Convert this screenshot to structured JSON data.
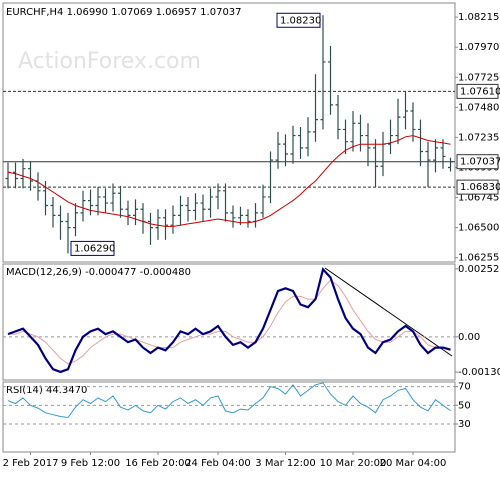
{
  "chart_data": [
    {
      "type": "ohlc",
      "title": "EURCHF,H4  1.06990 1.07069 1.06957 1.07037",
      "watermark": "ActionForex.com",
      "color": "#2f4f4f",
      "ma_color": "#cc0000",
      "categories": [
        null,
        null,
        null,
        "2 Feb 2017",
        null,
        null,
        null,
        null,
        null,
        null,
        null,
        "9 Feb 12:00",
        null,
        null,
        null,
        null,
        null,
        null,
        null,
        null,
        "16 Feb 20:00",
        null,
        null,
        null,
        null,
        null,
        null,
        null,
        "24 Feb 04:00",
        null,
        null,
        null,
        null,
        null,
        null,
        null,
        null,
        "3 Mar 12:00",
        null,
        null,
        null,
        null,
        null,
        null,
        null,
        null,
        "10 Mar 20:00",
        null,
        null,
        null,
        null,
        null,
        null,
        null,
        "20 Mar 04:00",
        null,
        null,
        null,
        null,
        null
      ],
      "open": [
        1.069,
        1.0695,
        1.069,
        1.0698,
        1.0688,
        1.068,
        1.0668,
        1.066,
        1.0655,
        1.065,
        1.0662,
        1.0672,
        1.0668,
        1.0675,
        1.067,
        1.0678,
        1.0665,
        1.066,
        1.0665,
        1.0655,
        1.065,
        1.0658,
        1.0652,
        1.066,
        1.0668,
        1.0664,
        1.067,
        1.0665,
        1.0675,
        1.068,
        1.0662,
        1.0658,
        1.066,
        1.0655,
        1.0662,
        1.0675,
        1.0705,
        1.0718,
        1.071,
        1.0725,
        1.0715,
        1.0728,
        1.0738,
        1.0785,
        1.075,
        1.073,
        1.072,
        1.0735,
        1.0725,
        1.0715,
        1.07,
        1.0718,
        1.0725,
        1.074,
        1.0745,
        1.073,
        1.0712,
        1.0705,
        1.0715,
        1.0699
      ],
      "high": [
        1.0703,
        1.0703,
        1.0706,
        1.0704,
        1.0695,
        1.0688,
        1.0675,
        1.0668,
        1.0662,
        1.067,
        1.068,
        1.0681,
        1.0683,
        1.0682,
        1.0686,
        1.0684,
        1.0672,
        1.0673,
        1.067,
        1.0662,
        1.0665,
        1.0665,
        1.0668,
        1.0676,
        1.0675,
        1.0678,
        1.0677,
        1.0682,
        1.0686,
        1.0686,
        1.0668,
        1.0667,
        1.0665,
        1.067,
        1.0685,
        1.0712,
        1.0728,
        1.0726,
        1.0733,
        1.0732,
        1.074,
        1.0775,
        1.0823,
        1.0798,
        1.0758,
        1.0738,
        1.0745,
        1.0742,
        1.0735,
        1.0722,
        1.0728,
        1.0738,
        1.0755,
        1.0761,
        1.0752,
        1.0738,
        1.072,
        1.0722,
        1.0722,
        1.07069
      ],
      "low": [
        1.0682,
        1.0682,
        1.0682,
        1.068,
        1.0672,
        1.066,
        1.065,
        1.064,
        1.0629,
        1.0643,
        1.0655,
        1.066,
        1.066,
        1.0662,
        1.0663,
        1.0658,
        1.0652,
        1.0652,
        1.0645,
        1.0636,
        1.064,
        1.064,
        1.0645,
        1.0652,
        1.0655,
        1.0656,
        1.0655,
        1.0658,
        1.0665,
        1.0655,
        1.065,
        1.0652,
        1.065,
        1.065,
        1.0658,
        1.067,
        1.0698,
        1.07,
        1.0702,
        1.0706,
        1.0708,
        1.072,
        1.073,
        1.0742,
        1.0722,
        1.071,
        1.0712,
        1.0712,
        1.07,
        1.0683,
        1.0692,
        1.071,
        1.0718,
        1.073,
        1.072,
        1.07,
        1.0683,
        1.0695,
        1.0698,
        1.06957
      ],
      "close": [
        1.0695,
        1.069,
        1.0698,
        1.0688,
        1.068,
        1.0668,
        1.066,
        1.0655,
        1.065,
        1.0662,
        1.0672,
        1.0668,
        1.0675,
        1.067,
        1.0678,
        1.0665,
        1.066,
        1.0665,
        1.0655,
        1.065,
        1.0658,
        1.0652,
        1.066,
        1.0668,
        1.0664,
        1.067,
        1.0665,
        1.0675,
        1.068,
        1.0662,
        1.0658,
        1.066,
        1.0655,
        1.0662,
        1.0675,
        1.0705,
        1.0718,
        1.071,
        1.0725,
        1.0715,
        1.0728,
        1.0738,
        1.0785,
        1.075,
        1.073,
        1.072,
        1.0735,
        1.0725,
        1.0715,
        1.07,
        1.0718,
        1.0725,
        1.074,
        1.0745,
        1.073,
        1.0712,
        1.0705,
        1.0715,
        1.0708,
        1.07037
      ],
      "ma": [
        1.0695,
        1.0694,
        1.0692,
        1.069,
        1.0687,
        1.0683,
        1.0679,
        1.0675,
        1.0671,
        1.0668,
        1.0666,
        1.0664,
        1.0663,
        1.0662,
        1.0661,
        1.066,
        1.0659,
        1.0657,
        1.0655,
        1.0653,
        1.0652,
        1.0651,
        1.0651,
        1.0652,
        1.0653,
        1.0654,
        1.0655,
        1.0656,
        1.0657,
        1.0656,
        1.0655,
        1.0654,
        1.0654,
        1.0655,
        1.0657,
        1.066,
        1.0664,
        1.0668,
        1.0672,
        1.0677,
        1.0683,
        1.0688,
        1.0695,
        1.0702,
        1.0708,
        1.0713,
        1.0716,
        1.0718,
        1.0718,
        1.0718,
        1.0718,
        1.0719,
        1.0721,
        1.0724,
        1.0725,
        1.0723,
        1.0721,
        1.072,
        1.0719,
        1.0718
      ],
      "ylim": [
        1.0622,
        1.0833
      ],
      "yticks": [
        {
          "value": 1.08215,
          "label": "1.08215"
        },
        {
          "value": 1.0797,
          "label": "1.07970"
        },
        {
          "value": 1.07725,
          "label": "1.07725"
        },
        {
          "value": 1.0748,
          "label": "1.07480"
        },
        {
          "value": 1.07235,
          "label": "1.07235"
        },
        {
          "value": 1.0699,
          "label": "1.06990"
        },
        {
          "value": 1.06745,
          "label": "1.06745"
        },
        {
          "value": 1.065,
          "label": "1.06500"
        },
        {
          "value": 1.06255,
          "label": "1.06255"
        }
      ],
      "levels": [
        {
          "value": 1.0761,
          "label": "1.07610",
          "style": "dashed"
        },
        {
          "value": 1.07037,
          "label": "1.07037",
          "style": "solid"
        },
        {
          "value": 1.0683,
          "label": "1.06830",
          "style": "dashed"
        }
      ],
      "high_label": {
        "value": 1.0823,
        "label": "1.08230"
      },
      "low_label": {
        "value": 1.0629,
        "label": "1.06290"
      }
    },
    {
      "type": "macd",
      "title": "MACD(12,26,9) -0.000477 -0.000480",
      "series": [
        {
          "color": "#000080",
          "values": [
            0.0001,
            0.0002,
            0.0003,
            0,
            -0.0003,
            -0.0008,
            -0.0012,
            -0.0013,
            -0.0012,
            -0.0005,
            0,
            0.0002,
            0.0003,
            0.0001,
            0.0002,
            0,
            -0.0002,
            -0.0001,
            -0.0004,
            -0.0006,
            -0.0004,
            -0.0005,
            -0.0002,
            0.0002,
            0.0001,
            0.0003,
            0.0001,
            0.0002,
            0.0004,
            0,
            -0.0003,
            -0.0002,
            -0.0004,
            -0.0002,
            0.0003,
            0.001,
            0.0017,
            0.0018,
            0.0017,
            0.0012,
            0.0011,
            0.0014,
            0.0025,
            0.0022,
            0.0014,
            0.0007,
            0.0003,
            0.0001,
            -0.0004,
            -0.0006,
            -0.0002,
            -0.0001,
            0.0002,
            0.0004,
            0.0002,
            -0.0003,
            -0.0006,
            -0.0004,
            -0.0004,
            -0.000477
          ]
        },
        {
          "color": "#e8a0a0",
          "values": [
            0.0001,
            0.0001,
            0.0002,
            0.0001,
            0,
            -0.0002,
            -0.0005,
            -0.0008,
            -0.001,
            -0.0009,
            -0.0007,
            -0.0004,
            -0.0002,
            0,
            0.0001,
            0.0001,
            0,
            -0.0001,
            -0.0002,
            -0.0003,
            -0.0004,
            -0.0004,
            -0.0004,
            -0.0002,
            -0.0001,
            0,
            0.0001,
            0.0001,
            0.0002,
            0.0002,
            0,
            -0.0001,
            -0.0002,
            -0.0002,
            0,
            0.0004,
            0.0009,
            0.0013,
            0.0015,
            0.0015,
            0.0014,
            0.0014,
            0.0018,
            0.0021,
            0.0019,
            0.0015,
            0.001,
            0.0006,
            0.0002,
            -0.0001,
            -0.0002,
            -0.0002,
            0,
            0.0002,
            0.0002,
            0,
            -0.0003,
            -0.0004,
            -0.0004,
            -0.00048
          ]
        }
      ],
      "ylim": [
        -0.0016,
        0.0027
      ],
      "yticks": [
        0.002521,
        {
          "value": 0,
          "label": "0.00"
        },
        -0.001308
      ]
    },
    {
      "type": "rsi",
      "title": "RSI(14) 44.3470",
      "grid": true,
      "series": [
        {
          "color": "#3399cc",
          "values": [
            55,
            52,
            58,
            50,
            47,
            42,
            40,
            38,
            37,
            48,
            56,
            52,
            58,
            54,
            60,
            48,
            45,
            50,
            44,
            42,
            50,
            46,
            54,
            58,
            52,
            56,
            50,
            58,
            60,
            44,
            42,
            46,
            45,
            52,
            58,
            70,
            68,
            62,
            72,
            60,
            66,
            72,
            74,
            62,
            54,
            50,
            60,
            52,
            48,
            42,
            56,
            60,
            66,
            68,
            56,
            48,
            44,
            56,
            50,
            44.347
          ]
        }
      ],
      "ylim": [
        0,
        75
      ],
      "yticks": [
        70,
        50,
        30
      ]
    }
  ]
}
